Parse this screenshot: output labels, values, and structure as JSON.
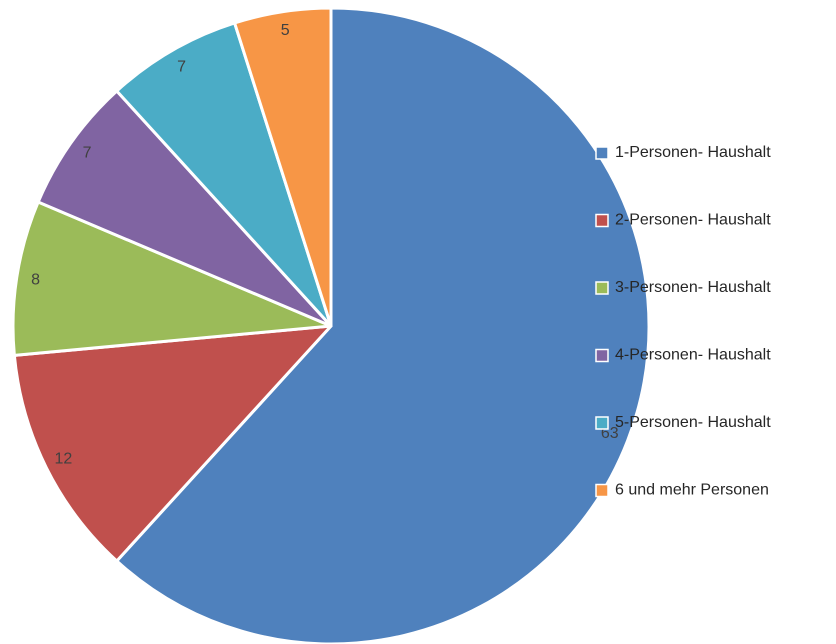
{
  "chart_data": {
    "type": "pie",
    "title": "",
    "categories": [
      "1-Personen- Haushalt",
      "2-Personen- Haushalt",
      "3-Personen- Haushalt",
      "4-Personen- Haushalt",
      "5-Personen- Haushalt",
      "6 und mehr Personen"
    ],
    "values": [
      63,
      12,
      8,
      7,
      7,
      5
    ],
    "colors": [
      "#4f81bd",
      "#c0504d",
      "#9bbb59",
      "#8064a2",
      "#4bacc6",
      "#f79646"
    ],
    "legend_position": "right",
    "data_labels_shown": true,
    "start_angle_deg": 0,
    "direction": "clockwise"
  }
}
